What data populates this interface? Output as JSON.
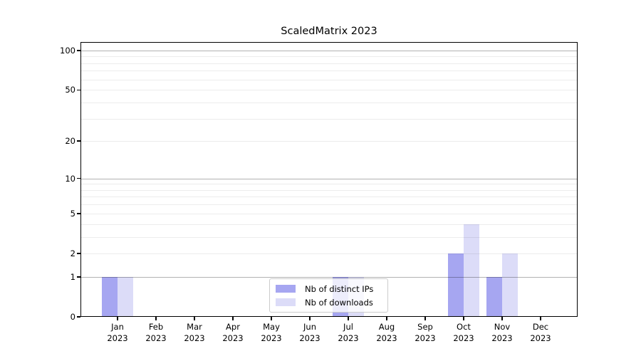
{
  "chart_data": {
    "type": "bar",
    "title": "ScaledMatrix 2023",
    "categories": [
      "Jan 2023",
      "Feb 2023",
      "Mar 2023",
      "Apr 2023",
      "May 2023",
      "Jun 2023",
      "Jul 2023",
      "Aug 2023",
      "Sep 2023",
      "Oct 2023",
      "Nov 2023",
      "Dec 2023"
    ],
    "series": [
      {
        "name": "Nb of distinct IPs",
        "color": "#a6a6f1",
        "values": [
          1,
          0,
          0,
          0,
          0,
          0,
          1,
          0,
          0,
          2,
          1,
          0
        ]
      },
      {
        "name": "Nb of downloads",
        "color": "#dcdcf8",
        "values": [
          1,
          0,
          0,
          0,
          0,
          0,
          1,
          0,
          0,
          4,
          2,
          0
        ]
      }
    ],
    "yscale": "log1p",
    "ylim": [
      0,
      116
    ],
    "ytick_values": [
      0,
      1,
      2,
      5,
      10,
      20,
      50,
      100
    ],
    "grid_major": [
      1,
      10,
      100
    ],
    "grid_minor": [
      2,
      3,
      4,
      5,
      6,
      7,
      8,
      9,
      20,
      30,
      40,
      50,
      60,
      70,
      80,
      90
    ],
    "grid": true,
    "legend_position": "lower center",
    "colors": {
      "background": "#ffffff",
      "text": "#000000",
      "spine": "#000000",
      "grid_major": "#b3b3b3",
      "grid_minor": "#ebebeb",
      "legend_border": "#cccccc"
    }
  }
}
